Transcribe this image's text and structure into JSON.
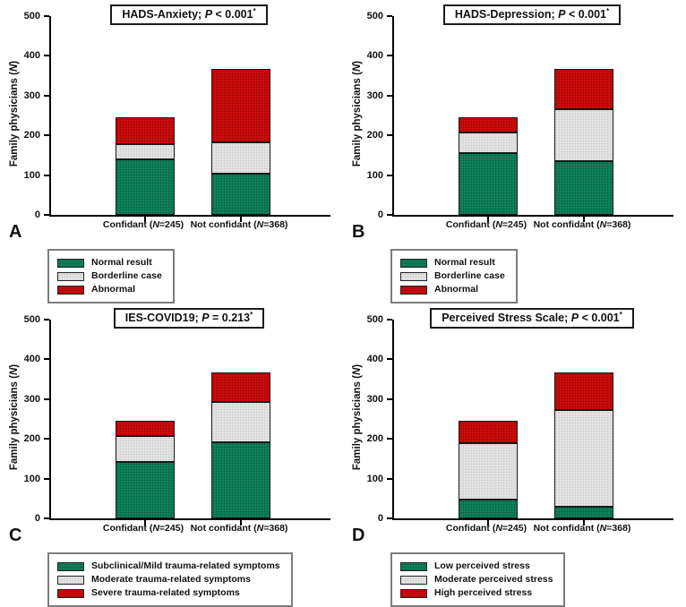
{
  "figure": {
    "background": "#ffffff",
    "panel_letters": [
      "A",
      "B",
      "C",
      "D"
    ]
  },
  "chart_data": [
    {
      "panel": "A",
      "type": "bar",
      "stacked": true,
      "title": "HADS-Anxiety; P < 0.001*",
      "title_parts": {
        "name": "HADS-Anxiety; ",
        "p": "P",
        "rest": " < 0.001",
        "sup": "*"
      },
      "ylabel": "Family physicians (N)",
      "ylabel_parts": {
        "pre": "Family physicians (",
        "n": "N",
        "post": ")"
      },
      "ylim": [
        0,
        500
      ],
      "yticks": [
        0,
        100,
        200,
        300,
        400,
        500
      ],
      "grid": false,
      "legend_position": "below-left",
      "categories": [
        "Confidant (N=245)",
        "Not confidant (N=368)"
      ],
      "category_parts": [
        {
          "pre": "Confidant (",
          "n": "N",
          "post": "=245)"
        },
        {
          "pre": "Not confidant (",
          "n": "N",
          "post": "=368)"
        }
      ],
      "series": [
        {
          "name": "Normal result",
          "color": "#0F8159",
          "values": [
            140,
            104
          ]
        },
        {
          "name": "Borderline case",
          "color": "#E3E3E3",
          "values": [
            38,
            78
          ]
        },
        {
          "name": "Abnormal",
          "color": "#CE0B0B",
          "values": [
            67,
            186
          ]
        }
      ]
    },
    {
      "panel": "B",
      "type": "bar",
      "stacked": true,
      "title": "HADS-Depression; P < 0.001*",
      "title_parts": {
        "name": "HADS-Depression; ",
        "p": "P",
        "rest": " < 0.001",
        "sup": "*"
      },
      "ylabel": "Family physicians (N)",
      "ylabel_parts": {
        "pre": "Family physicians (",
        "n": "N",
        "post": ")"
      },
      "ylim": [
        0,
        500
      ],
      "yticks": [
        0,
        100,
        200,
        300,
        400,
        500
      ],
      "grid": false,
      "legend_position": "below-left",
      "categories": [
        "Confidant (N=245)",
        "Not confidant (N=368)"
      ],
      "category_parts": [
        {
          "pre": "Confidant (",
          "n": "N",
          "post": "=245)"
        },
        {
          "pre": "Not confidant (",
          "n": "N",
          "post": "=368)"
        }
      ],
      "series": [
        {
          "name": "Normal result",
          "color": "#0F8159",
          "values": [
            155,
            135
          ]
        },
        {
          "name": "Borderline case",
          "color": "#E3E3E3",
          "values": [
            53,
            130
          ]
        },
        {
          "name": "Abnormal",
          "color": "#CE0B0B",
          "values": [
            37,
            103
          ]
        }
      ]
    },
    {
      "panel": "C",
      "type": "bar",
      "stacked": true,
      "title": "IES-COVID19; P = 0.213*",
      "title_parts": {
        "name": "IES-COVID19; ",
        "p": "P",
        "rest": " = 0.213",
        "sup": "*"
      },
      "ylabel": "Family physicians (N)",
      "ylabel_parts": {
        "pre": "Family physicians (",
        "n": "N",
        "post": ")"
      },
      "ylim": [
        0,
        500
      ],
      "yticks": [
        0,
        100,
        200,
        300,
        400,
        500
      ],
      "grid": false,
      "legend_position": "below-left",
      "categories": [
        "Confidant (N=245)",
        "Not confidant (N=368)"
      ],
      "category_parts": [
        {
          "pre": "Confidant (",
          "n": "N",
          "post": "=245)"
        },
        {
          "pre": "Not confidant (",
          "n": "N",
          "post": "=368)"
        }
      ],
      "series": [
        {
          "name": "Subclinical/Mild trauma-related symptoms",
          "color": "#0F8159",
          "values": [
            142,
            192
          ]
        },
        {
          "name": "Moderate trauma-related symptoms",
          "color": "#E3E3E3",
          "values": [
            66,
            101
          ]
        },
        {
          "name": "Severe trauma-related symptoms",
          "color": "#CE0B0B",
          "values": [
            37,
            75
          ]
        }
      ]
    },
    {
      "panel": "D",
      "type": "bar",
      "stacked": true,
      "title": "Perceived Stress Scale; P < 0.001*",
      "title_parts": {
        "name": "Perceived Stress Scale; ",
        "p": "P",
        "rest": " < 0.001",
        "sup": "*"
      },
      "ylabel": "Family physicians (N)",
      "ylabel_parts": {
        "pre": "Family physicians (",
        "n": "N",
        "post": ")"
      },
      "ylim": [
        0,
        500
      ],
      "yticks": [
        0,
        100,
        200,
        300,
        400,
        500
      ],
      "grid": false,
      "legend_position": "below-left",
      "categories": [
        "Confidant (N=245)",
        "Not confidant (N=368)"
      ],
      "category_parts": [
        {
          "pre": "Confidant (",
          "n": "N",
          "post": "=245)"
        },
        {
          "pre": "Not confidant (",
          "n": "N",
          "post": "=368)"
        }
      ],
      "series": [
        {
          "name": "Low perceived stress",
          "color": "#0F8159",
          "values": [
            47,
            29
          ]
        },
        {
          "name": "Moderate perceived stress",
          "color": "#E3E3E3",
          "values": [
            143,
            243
          ]
        },
        {
          "name": "High perceived stress",
          "color": "#CE0B0B",
          "values": [
            55,
            96
          ]
        }
      ]
    }
  ]
}
